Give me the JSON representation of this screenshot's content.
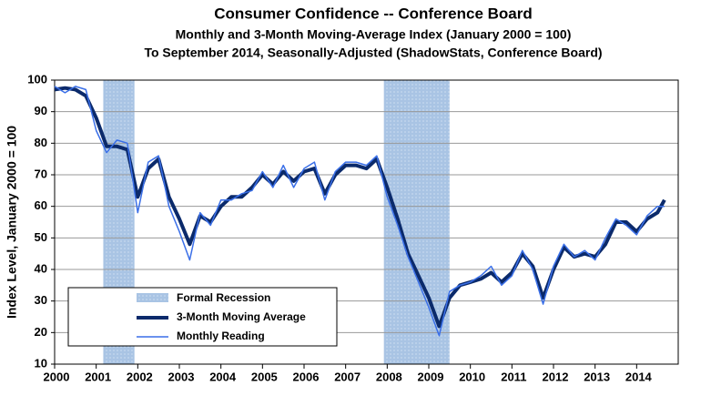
{
  "chart_data": {
    "type": "line",
    "title": "Consumer Confidence -- Conference Board",
    "subtitle": [
      "Monthly and 3-Month Moving-Average Index (January 2000 = 100)",
      "To September 2014, Seasonally-Adjusted (ShadowStats, Conference Board)"
    ],
    "y_label": "Index Level, January 2000 = 100",
    "recession_label": "Formal Recession",
    "recessions": [
      [
        2001.17,
        2001.92
      ],
      [
        2007.92,
        2009.5
      ]
    ],
    "recession_color": "#a9c4e4",
    "x": [
      2000,
      2000.25,
      2000.5,
      2000.75,
      2001,
      2001.25,
      2001.5,
      2001.75,
      2002,
      2002.25,
      2002.5,
      2002.75,
      2003,
      2003.25,
      2003.5,
      2003.75,
      2004,
      2004.25,
      2004.5,
      2004.75,
      2005,
      2005.25,
      2005.5,
      2005.75,
      2006,
      2006.25,
      2006.5,
      2006.75,
      2007,
      2007.25,
      2007.5,
      2007.75,
      2008,
      2008.25,
      2008.5,
      2008.75,
      2009,
      2009.25,
      2009.5,
      2009.75,
      2010,
      2010.25,
      2010.5,
      2010.75,
      2011,
      2011.25,
      2011.5,
      2011.75,
      2012,
      2012.25,
      2012.5,
      2012.75,
      2013,
      2013.25,
      2013.5,
      2013.75,
      2014,
      2014.25,
      2014.5,
      2014.67
    ],
    "series": [
      {
        "name": "3-Month Moving Average",
        "color": "#0b2a6b",
        "width": 4,
        "values": [
          97,
          97.5,
          97,
          95,
          88,
          79,
          79,
          78,
          63,
          72,
          75,
          63,
          56,
          48,
          57,
          55,
          60,
          63,
          63,
          66,
          70,
          67,
          71,
          68,
          71,
          72,
          64,
          70,
          73,
          73,
          72,
          75,
          66,
          56,
          45,
          38,
          31,
          22,
          31,
          35,
          36,
          37,
          39,
          36,
          39,
          45,
          41,
          31,
          40,
          47,
          44,
          45,
          44,
          48,
          55,
          55,
          52,
          56,
          58,
          62
        ]
      },
      {
        "name": "Monthly Reading",
        "color": "#3a6fe8",
        "width": 1.5,
        "values": [
          98,
          96,
          98,
          97,
          84,
          77,
          81,
          80,
          58,
          74,
          76,
          60,
          52,
          43,
          58,
          54,
          62,
          62,
          64,
          65,
          71,
          66,
          73,
          66,
          72,
          74,
          62,
          71,
          74,
          74,
          73,
          76,
          63,
          54,
          44,
          36,
          28,
          19,
          33,
          35,
          36,
          38,
          41,
          35,
          38,
          46,
          40,
          29,
          41,
          48,
          44,
          46,
          43,
          50,
          56,
          54,
          51,
          57,
          60,
          60
        ]
      }
    ],
    "xlim": [
      2000,
      2015
    ],
    "xticks": [
      2000,
      2001,
      2002,
      2003,
      2004,
      2005,
      2006,
      2007,
      2008,
      2009,
      2010,
      2011,
      2012,
      2013,
      2014
    ],
    "ylim": [
      10,
      100
    ],
    "yticks": [
      10,
      20,
      30,
      40,
      50,
      60,
      70,
      80,
      90,
      100
    ],
    "grid": true
  }
}
